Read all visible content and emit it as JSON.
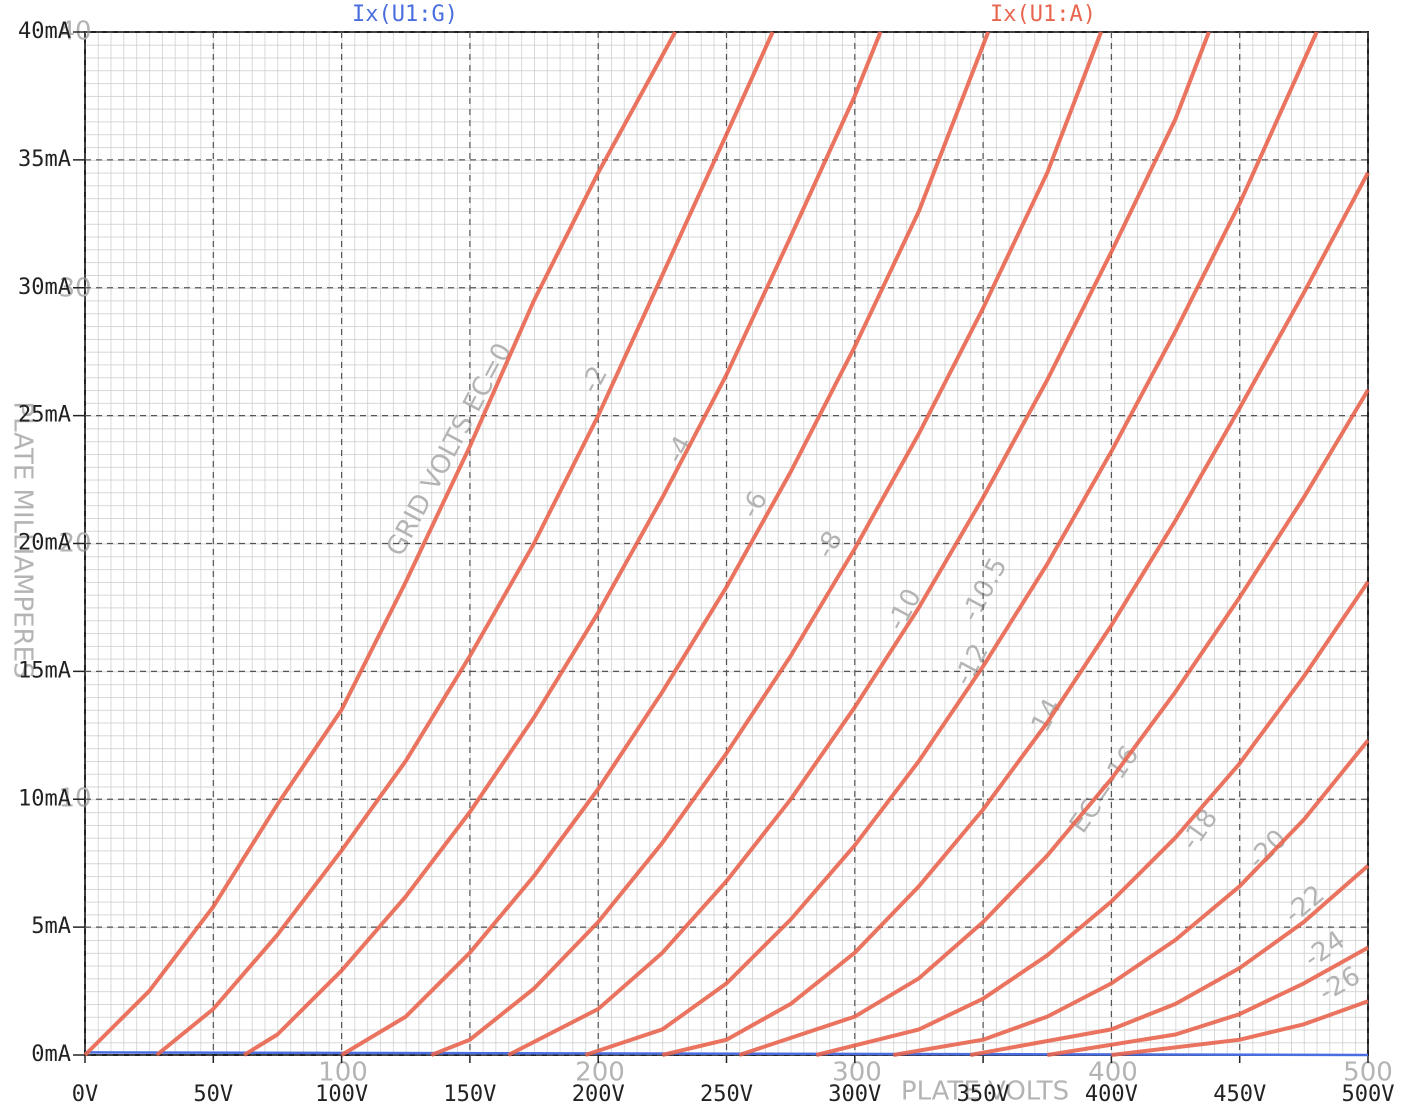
{
  "chart_data": {
    "type": "line",
    "grid": true,
    "xlim": [
      0,
      500
    ],
    "ylim": [
      0,
      40
    ],
    "xticks": [
      {
        "value": 0,
        "label": "0V"
      },
      {
        "value": 50,
        "label": "50V"
      },
      {
        "value": 100,
        "label": "100V"
      },
      {
        "value": 150,
        "label": "150V"
      },
      {
        "value": 200,
        "label": "200V"
      },
      {
        "value": 250,
        "label": "250V"
      },
      {
        "value": 300,
        "label": "300V"
      },
      {
        "value": 350,
        "label": "350V"
      },
      {
        "value": 400,
        "label": "400V"
      },
      {
        "value": 450,
        "label": "450V"
      },
      {
        "value": 500,
        "label": "500V"
      }
    ],
    "yticks": [
      {
        "value": 0,
        "label": "0mA"
      },
      {
        "value": 5,
        "label": "5mA"
      },
      {
        "value": 10,
        "label": "10mA"
      },
      {
        "value": 15,
        "label": "15mA"
      },
      {
        "value": 20,
        "label": "20mA"
      },
      {
        "value": 25,
        "label": "25mA"
      },
      {
        "value": 30,
        "label": "30mA"
      },
      {
        "value": 35,
        "label": "35mA"
      },
      {
        "value": 40,
        "label": "40mA"
      }
    ],
    "series": [
      {
        "name": "Ix(U1:G)",
        "color": "#4a6ee0",
        "x": [
          0,
          500
        ],
        "values": [
          0.1,
          0
        ]
      },
      {
        "name": "Ix(U1:A)",
        "color": "#e8654f",
        "curves": [
          {
            "x": [
              0,
              25,
              50,
              75,
              100,
              125,
              150,
              175,
              200,
              230
            ],
            "values": [
              0,
              2.5,
              5.8,
              9.8,
              13.5,
              18.5,
              23.8,
              29.5,
              34.5,
              40
            ]
          },
          {
            "x": [
              28,
              50,
              75,
              100,
              125,
              150,
              175,
              200,
              225,
              250,
              268
            ],
            "values": [
              0,
              1.8,
              4.7,
              8,
              11.5,
              15.6,
              20,
              25,
              30.5,
              36,
              40
            ]
          },
          {
            "x": [
              62,
              75,
              100,
              125,
              150,
              175,
              200,
              225,
              250,
              275,
              300,
              310
            ],
            "values": [
              0,
              0.8,
              3.3,
              6.2,
              9.5,
              13.2,
              17.3,
              21.8,
              26.6,
              32,
              37.5,
              40
            ]
          },
          {
            "x": [
              100,
              125,
              150,
              175,
              200,
              225,
              250,
              275,
              300,
              325,
              352
            ],
            "values": [
              0,
              1.5,
              4,
              7,
              10.4,
              14.2,
              18.3,
              22.8,
              27.7,
              33,
              40
            ]
          },
          {
            "x": [
              135,
              150,
              175,
              200,
              225,
              250,
              275,
              300,
              325,
              350,
              375,
              396
            ],
            "values": [
              0,
              0.6,
              2.6,
              5.2,
              8.3,
              11.8,
              15.6,
              19.8,
              24.3,
              29.2,
              34.5,
              40
            ]
          },
          {
            "x": [
              165,
              200,
              225,
              250,
              275,
              300,
              325,
              350,
              375,
              400,
              425,
              438
            ],
            "values": [
              0,
              1.8,
              4,
              6.8,
              10,
              13.6,
              17.5,
              21.8,
              26.4,
              31.4,
              36.6,
              40
            ]
          },
          {
            "x": [
              195,
              225,
              250,
              275,
              300,
              325,
              350,
              375,
              400,
              425,
              450,
              480
            ],
            "values": [
              0,
              1,
              2.8,
              5.3,
              8.2,
              11.5,
              15.2,
              19.2,
              23.6,
              28.3,
              33.3,
              40
            ]
          },
          {
            "x": [
              225,
              250,
              275,
              300,
              325,
              350,
              375,
              400,
              425,
              450,
              475,
              500
            ],
            "values": [
              0,
              0.6,
              2,
              4,
              6.6,
              9.6,
              13,
              16.8,
              20.9,
              25.3,
              29.8,
              34.5
            ]
          },
          {
            "x": [
              255,
              300,
              325,
              350,
              375,
              400,
              425,
              450,
              475,
              500
            ],
            "values": [
              0,
              1.5,
              3,
              5.2,
              7.8,
              10.8,
              14.2,
              17.9,
              21.8,
              26
            ]
          },
          {
            "x": [
              285,
              325,
              350,
              375,
              400,
              425,
              450,
              475,
              500
            ],
            "values": [
              0,
              1,
              2.2,
              3.9,
              6,
              8.5,
              11.4,
              14.8,
              18.5
            ]
          },
          {
            "x": [
              315,
              350,
              375,
              400,
              425,
              450,
              475,
              500
            ],
            "values": [
              0,
              0.6,
              1.5,
              2.8,
              4.5,
              6.6,
              9.2,
              12.3
            ]
          },
          {
            "x": [
              345,
              400,
              425,
              450,
              475,
              500
            ],
            "values": [
              0,
              1,
              2,
              3.4,
              5.2,
              7.4
            ]
          },
          {
            "x": [
              375,
              425,
              450,
              475,
              500
            ],
            "values": [
              0,
              0.8,
              1.6,
              2.8,
              4.2
            ]
          },
          {
            "x": [
              400,
              450,
              475,
              500
            ],
            "values": [
              0,
              0.6,
              1.2,
              2.1
            ]
          }
        ]
      }
    ],
    "scan_labels": [
      "PLATE MILLIAMPERES",
      "PLATE VOLTS",
      "GRID VOLTS EC=0",
      "-2",
      "-4",
      "-6",
      "-8",
      "-10",
      "-10.5",
      "-12",
      "-14",
      "EC=-16",
      "-18",
      "-20",
      "-22",
      "-24",
      "-26",
      "100",
      "200",
      "300",
      "400",
      "500",
      "40",
      "30",
      "20",
      "10"
    ]
  }
}
